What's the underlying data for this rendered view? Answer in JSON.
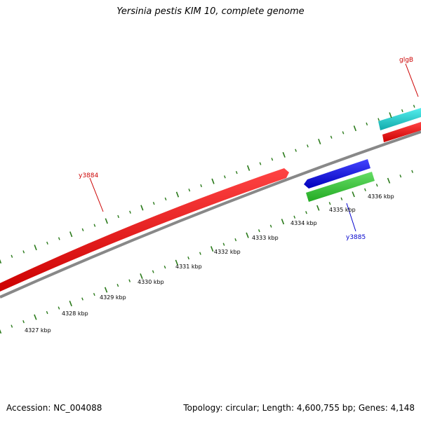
{
  "title": "Yersinia pestis KIM 10, complete genome",
  "footer": {
    "accession": "Accession: NC_004088",
    "stats": "Topology: circular; Length: 4,600,755 bp; Genes: 4,148"
  },
  "genes": [
    {
      "name": "y3884",
      "color": "#cc0000",
      "label_color": "#cc0000"
    },
    {
      "name": "y3885",
      "color": "#0000cc",
      "label_color": "#0000cc"
    },
    {
      "name": "glgB",
      "color": "#cc0000",
      "label_color": "#cc0000"
    }
  ],
  "colors": {
    "backbone": "#888888",
    "tick": "#2a7a1a",
    "forward_gene": "#ee1111",
    "reverse_gene": "#2222dd",
    "cds_green": "#33bb33",
    "cds_cyan": "#22cccc"
  },
  "scale_ticks": [
    "4327 kbp",
    "4328 kbp",
    "4329 kbp",
    "4330 kbp",
    "4331 kbp",
    "4332 kbp",
    "4333 kbp",
    "4334 kbp",
    "4335 kbp",
    "4336 kbp"
  ]
}
